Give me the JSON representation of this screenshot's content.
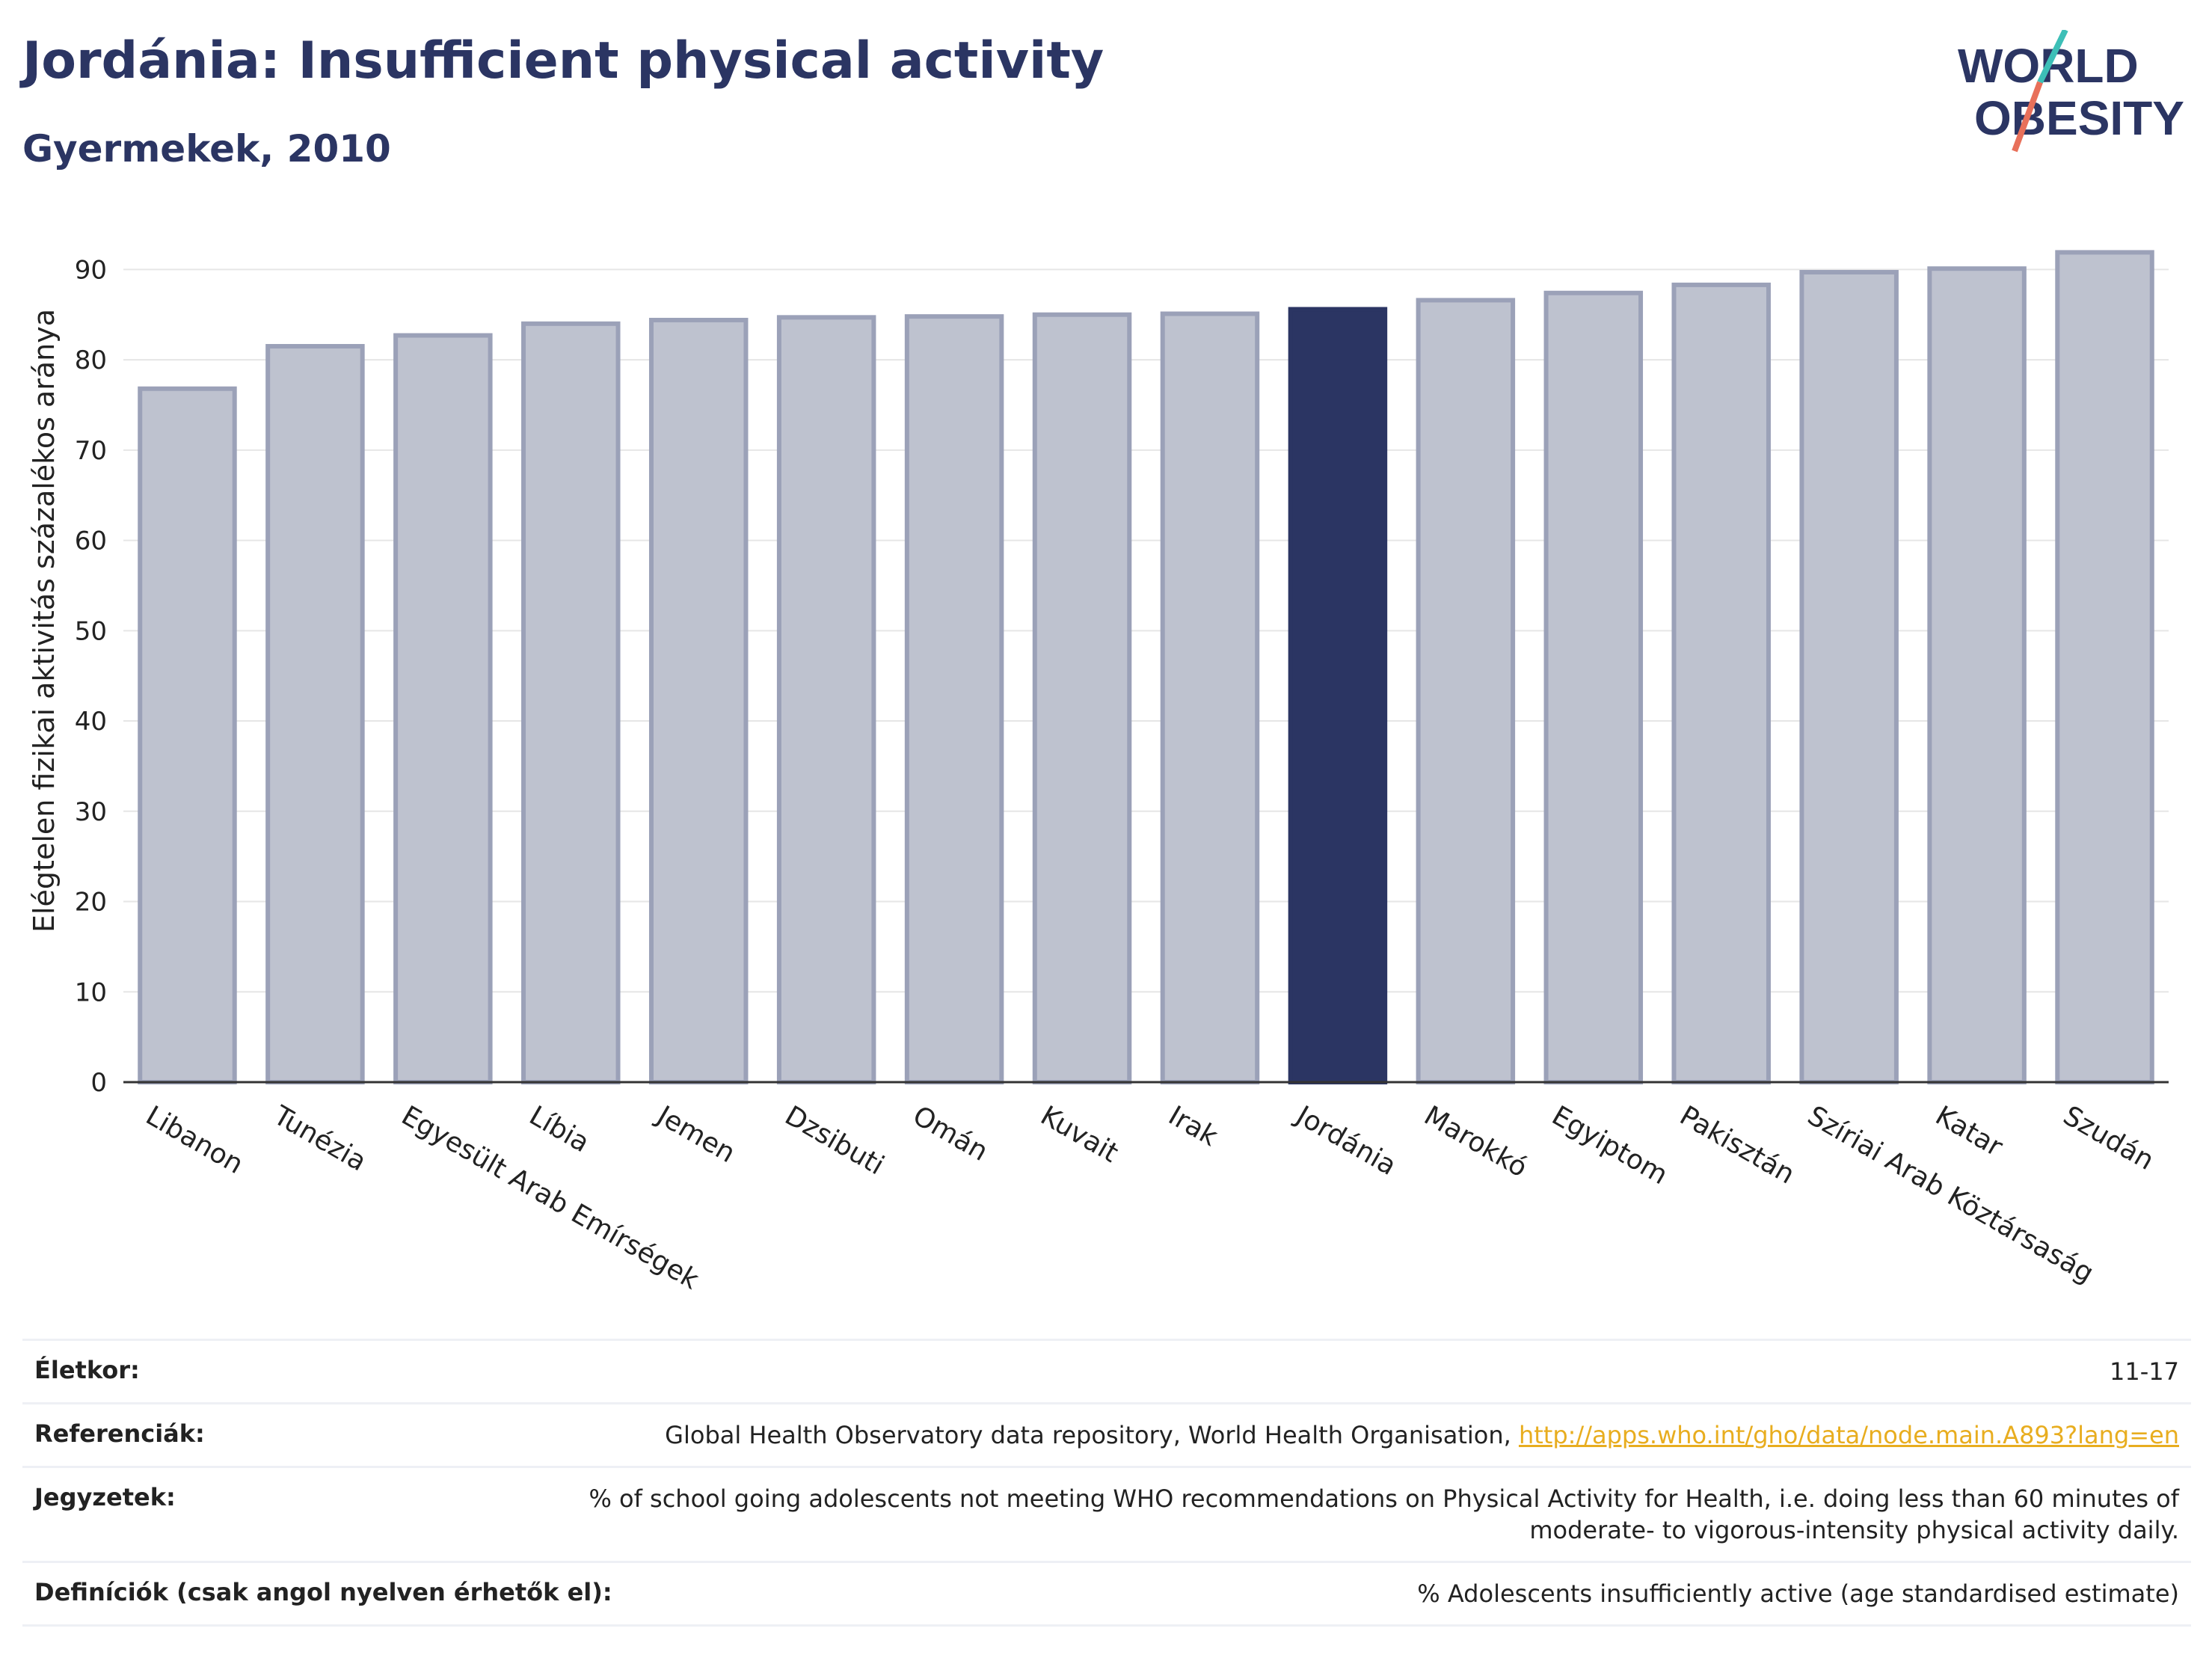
{
  "header": {
    "title": "Jordánia: Insufficient physical activity",
    "subtitle": "Gyermekek, 2010"
  },
  "logo": {
    "line1": "WORLD",
    "line2": "OBESITY"
  },
  "colors": {
    "highlight": "#2b3563",
    "bar_fill": "#bec2cf",
    "bar_stroke": "#9ba1b8",
    "grid": "#e6e6e6",
    "logo_teal": "#3dbfb7",
    "logo_coral": "#e8705a"
  },
  "chart_data": {
    "type": "bar",
    "categories": [
      "Libanon",
      "Tunézia",
      "Egyesült Arab Emírségek",
      "Líbia",
      "Jemen",
      "Dzsibuti",
      "Omán",
      "Kuvait",
      "Irak",
      "Jordánia",
      "Marokkó",
      "Egyiptom",
      "Pakisztán",
      "Szíriai Arab Köztársaság",
      "Katar",
      "Szudán"
    ],
    "values": [
      76.8,
      81.5,
      82.7,
      84.0,
      84.4,
      84.7,
      84.8,
      85.0,
      85.1,
      85.6,
      86.6,
      87.4,
      88.3,
      89.7,
      90.1,
      91.9
    ],
    "highlight": "Jordánia",
    "ylabel": "Elégtelen fizikai aktivitás százalékos aránya",
    "yticks": [
      0,
      10,
      20,
      30,
      40,
      50,
      60,
      70,
      80,
      90
    ],
    "ylim": [
      0,
      95
    ],
    "grid": true
  },
  "footer": {
    "rows": [
      {
        "label": "Életkor:",
        "value": "11-17"
      },
      {
        "label": "Referenciák:",
        "value": "Global Health Observatory data repository, World Health Organisation, ",
        "link": "http://apps.who.int/gho/data/node.main.A893?lang=en"
      },
      {
        "label": "Jegyzetek:",
        "value": "% of school going adolescents not meeting WHO recommendations on Physical Activity for Health, i.e. doing less than 60 minutes of moderate- to vigorous-intensity physical activity daily."
      },
      {
        "label": "Definíciók (csak angol nyelven érhetők el):",
        "value": "% Adolescents insufficiently active (age standardised estimate)"
      }
    ]
  }
}
